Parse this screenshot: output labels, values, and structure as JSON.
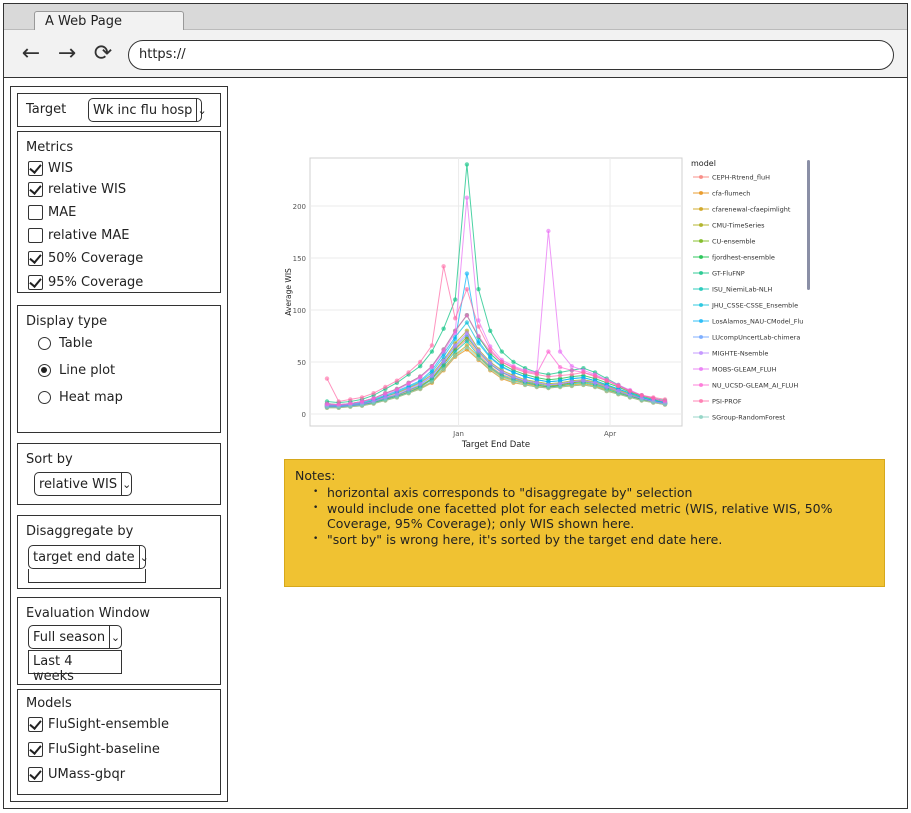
{
  "browser": {
    "tab_title": "A Web Page",
    "url": "https://",
    "back_icon": "←",
    "forward_icon": "→",
    "reload_icon": "⟳"
  },
  "sidebar": {
    "target": {
      "label": "Target",
      "value": "Wk inc flu hosp"
    },
    "metrics": {
      "title": "Metrics",
      "items": [
        {
          "label": "WIS",
          "checked": true
        },
        {
          "label": "relative WIS",
          "checked": true
        },
        {
          "label": "MAE",
          "checked": false
        },
        {
          "label": "relative MAE",
          "checked": false
        },
        {
          "label": "50% Coverage",
          "checked": true
        },
        {
          "label": "95% Coverage",
          "checked": true
        }
      ]
    },
    "display_type": {
      "title": "Display type",
      "options": [
        {
          "label": "Table",
          "selected": false
        },
        {
          "label": "Line plot",
          "selected": true
        },
        {
          "label": "Heat map",
          "selected": false
        }
      ]
    },
    "sort_by": {
      "title": "Sort by",
      "value": "relative WIS"
    },
    "disaggregate_by": {
      "title": "Disaggregate by",
      "value": "target end date"
    },
    "evaluation_window": {
      "title": "Evaluation Window",
      "value": "Full season",
      "option": "Last 4 weeks"
    },
    "models": {
      "title": "Models",
      "items": [
        {
          "label": "FluSight-ensemble",
          "checked": true
        },
        {
          "label": "FluSight-baseline",
          "checked": true
        },
        {
          "label": "UMass-gbqr",
          "checked": true
        }
      ]
    }
  },
  "chart_data": {
    "type": "line",
    "title": "",
    "xlabel": "Target End Date",
    "ylabel": "Average WIS",
    "x_ticks": [
      "Jan",
      "Apr"
    ],
    "y_ticks": [
      0,
      50,
      100,
      150,
      200
    ],
    "ylim": [
      0,
      240
    ],
    "grid": true,
    "legend_title": "model",
    "legend_position": "right",
    "x": [
      "2023-10-14",
      "2023-10-21",
      "2023-10-28",
      "2023-11-04",
      "2023-11-11",
      "2023-11-18",
      "2023-11-25",
      "2023-12-02",
      "2023-12-09",
      "2023-12-16",
      "2023-12-23",
      "2023-12-30",
      "2024-01-06",
      "2024-01-13",
      "2024-01-20",
      "2024-01-27",
      "2024-02-03",
      "2024-02-10",
      "2024-02-17",
      "2024-02-24",
      "2024-03-02",
      "2024-03-09",
      "2024-03-16",
      "2024-03-23",
      "2024-03-30",
      "2024-04-06",
      "2024-04-13",
      "2024-04-20",
      "2024-04-27",
      "2024-05-04"
    ],
    "series": [
      {
        "name": "CEPH-Rtrend_fluH",
        "color": "#f8766d",
        "values": [
          8,
          7,
          8,
          9,
          12,
          16,
          18,
          22,
          26,
          34,
          48,
          62,
          72,
          58,
          46,
          38,
          34,
          30,
          28,
          26,
          28,
          30,
          32,
          30,
          26,
          22,
          18,
          14,
          12,
          10
        ]
      },
      {
        "name": "cfa-flumech",
        "color": "#e58700",
        "values": [
          6,
          6,
          7,
          8,
          10,
          13,
          16,
          20,
          24,
          30,
          42,
          55,
          62,
          52,
          42,
          34,
          30,
          28,
          26,
          25,
          26,
          27,
          28,
          26,
          22,
          19,
          16,
          13,
          11,
          9
        ]
      },
      {
        "name": "cfarenewal-cfaepimlight",
        "color": "#c99800",
        "values": [
          7,
          7,
          8,
          9,
          11,
          14,
          17,
          21,
          25,
          31,
          44,
          57,
          66,
          55,
          44,
          36,
          32,
          29,
          27,
          26,
          27,
          28,
          29,
          27,
          23,
          20,
          17,
          14,
          12,
          10
        ]
      },
      {
        "name": "CMU-TimeSeries",
        "color": "#a3a500",
        "values": [
          9,
          8,
          9,
          10,
          13,
          17,
          20,
          25,
          30,
          38,
          52,
          68,
          80,
          62,
          50,
          42,
          37,
          33,
          31,
          29,
          30,
          32,
          33,
          31,
          27,
          23,
          19,
          15,
          13,
          11
        ]
      },
      {
        "name": "CU-ensemble",
        "color": "#6bb100",
        "values": [
          8,
          8,
          9,
          10,
          12,
          15,
          18,
          23,
          27,
          34,
          48,
          63,
          74,
          60,
          48,
          40,
          35,
          31,
          29,
          27,
          28,
          30,
          31,
          29,
          25,
          21,
          18,
          15,
          12,
          10
        ]
      },
      {
        "name": "fjordhest-ensemble",
        "color": "#00ba38",
        "values": [
          10,
          9,
          10,
          12,
          15,
          20,
          24,
          30,
          36,
          46,
          62,
          80,
          95,
          74,
          58,
          48,
          42,
          38,
          35,
          33,
          34,
          36,
          37,
          34,
          30,
          26,
          21,
          17,
          14,
          12
        ]
      },
      {
        "name": "GT-FluFNP",
        "color": "#00bf7d",
        "values": [
          12,
          11,
          12,
          14,
          18,
          24,
          30,
          38,
          46,
          60,
          82,
          110,
          240,
          120,
          80,
          60,
          50,
          44,
          40,
          38,
          40,
          42,
          44,
          40,
          34,
          28,
          22,
          18,
          15,
          13
        ]
      },
      {
        "name": "ISU_NiemiLab-NLH",
        "color": "#00c0af",
        "values": [
          7,
          7,
          8,
          9,
          11,
          14,
          17,
          21,
          26,
          33,
          46,
          60,
          70,
          56,
          45,
          37,
          33,
          30,
          28,
          26,
          27,
          29,
          30,
          28,
          24,
          20,
          17,
          14,
          12,
          10
        ]
      },
      {
        "name": "JHU_CSSE-CSSE_Ensemble",
        "color": "#00bcd8",
        "values": [
          9,
          8,
          9,
          11,
          14,
          18,
          22,
          27,
          32,
          42,
          58,
          74,
          88,
          68,
          54,
          45,
          40,
          36,
          33,
          31,
          32,
          34,
          35,
          32,
          28,
          24,
          20,
          16,
          13,
          11
        ]
      },
      {
        "name": "LosAlamos_NAU-CModel_Flu",
        "color": "#00b0f6",
        "values": [
          8,
          8,
          9,
          10,
          13,
          17,
          21,
          26,
          31,
          40,
          55,
          72,
          135,
          70,
          55,
          46,
          40,
          36,
          33,
          31,
          32,
          34,
          35,
          32,
          28,
          24,
          20,
          16,
          13,
          11
        ]
      },
      {
        "name": "LUcompUncertLab-chimera",
        "color": "#619cff",
        "values": [
          7,
          7,
          8,
          9,
          12,
          15,
          18,
          23,
          28,
          36,
          50,
          65,
          76,
          60,
          48,
          40,
          35,
          32,
          30,
          28,
          29,
          31,
          32,
          30,
          26,
          22,
          18,
          15,
          12,
          10
        ]
      },
      {
        "name": "MIGHTE-Nsemble",
        "color": "#b983ff",
        "values": [
          8,
          8,
          9,
          10,
          12,
          16,
          19,
          24,
          29,
          37,
          51,
          66,
          78,
          61,
          49,
          41,
          36,
          32,
          30,
          28,
          29,
          31,
          32,
          30,
          26,
          22,
          18,
          15,
          12,
          10
        ]
      },
      {
        "name": "MOBS-GLEAM_FLUH",
        "color": "#e76bf3",
        "values": [
          9,
          9,
          10,
          12,
          15,
          19,
          23,
          29,
          35,
          45,
          60,
          78,
          208,
          90,
          65,
          52,
          46,
          42,
          40,
          176,
          60,
          46,
          42,
          38,
          33,
          28,
          23,
          18,
          15,
          12
        ]
      },
      {
        "name": "NU_UCSD-GLEAM_AI_FLUH",
        "color": "#fd61d1",
        "values": [
          10,
          9,
          10,
          12,
          15,
          20,
          24,
          30,
          36,
          46,
          62,
          80,
          95,
          75,
          60,
          50,
          45,
          41,
          39,
          60,
          45,
          42,
          40,
          37,
          32,
          27,
          22,
          18,
          15,
          12
        ]
      },
      {
        "name": "PSI-PROF",
        "color": "#ff67a4",
        "values": [
          34,
          12,
          14,
          16,
          20,
          26,
          32,
          40,
          50,
          66,
          142,
          92,
          120,
          84,
          62,
          50,
          44,
          40,
          38,
          36,
          37,
          38,
          40,
          36,
          32,
          27,
          22,
          18,
          16,
          14
        ]
      },
      {
        "name": "SGroup-RandomForest",
        "color": "#7fcdbb",
        "values": [
          6,
          6,
          7,
          8,
          10,
          13,
          16,
          20,
          24,
          31,
          43,
          56,
          64,
          53,
          43,
          35,
          31,
          28,
          26,
          25,
          26,
          27,
          28,
          26,
          22,
          19,
          16,
          13,
          11,
          9
        ]
      }
    ]
  },
  "notes": {
    "title": "Notes:",
    "items": [
      "horizontal axis corresponds to \"disaggregate by\" selection",
      "would include one facetted plot for each selected metric (WIS, relative WIS, 50% Coverage, 95% Coverage); only WIS shown here.",
      "\"sort by\" is wrong here, it's sorted by the target end date here."
    ]
  }
}
